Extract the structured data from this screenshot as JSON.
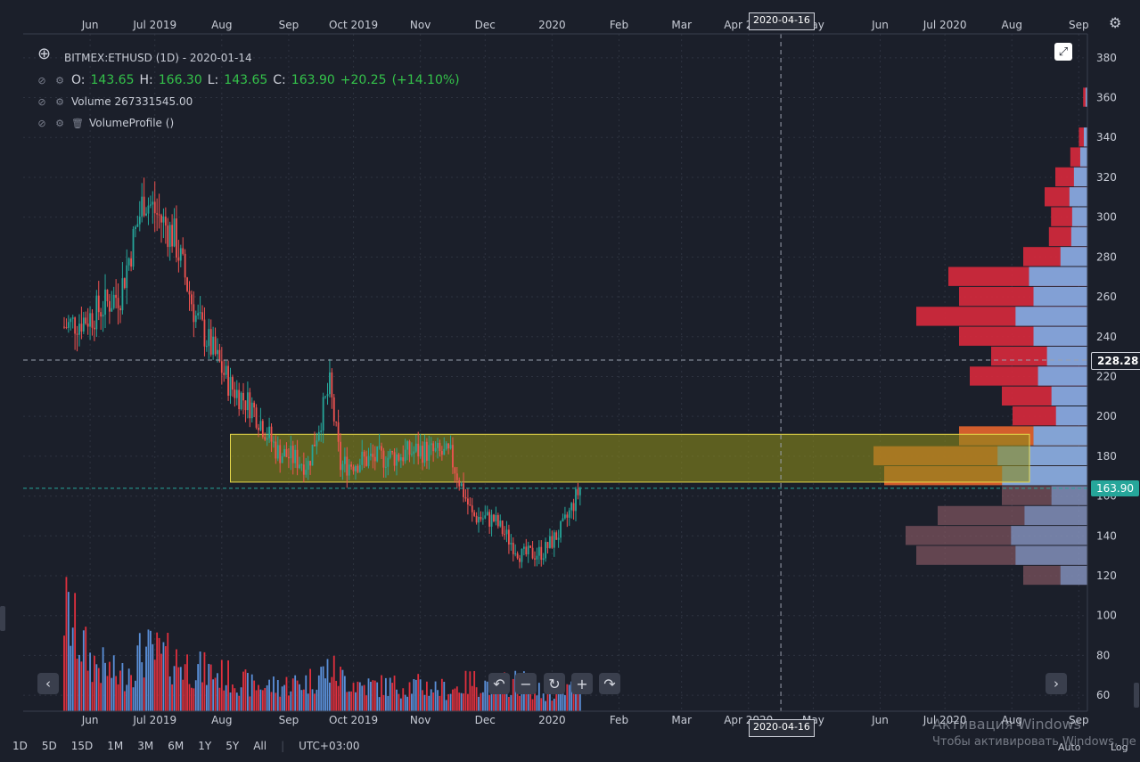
{
  "header": {
    "symbol_line": "BITMEX:ETHUSD (1D) - 2020-01-14",
    "ohlc": {
      "o_label": "O:",
      "o": "143.65",
      "h_label": "H:",
      "h": "166.30",
      "l_label": "L:",
      "l": "143.65",
      "c_label": "C:",
      "c": "163.90",
      "chg": "+20.25",
      "chg_pct": "(+14.10%)"
    },
    "volume_line": "Volume  267331545.00",
    "profile_line": "VolumeProfile ()"
  },
  "crosshair": {
    "date_label": "2020-04-16",
    "price_label": "228.28"
  },
  "last_price_label": "163.90",
  "bottom_toolbar": {
    "ranges": [
      "1D",
      "5D",
      "15D",
      "1M",
      "3M",
      "6M",
      "1Y",
      "5Y",
      "All"
    ],
    "timezone": "UTC+03:00",
    "auto": "Auto",
    "log": "Log"
  },
  "watermark": {
    "line1": "Активация Windows",
    "line2": "Чтобы активировать Windows, пе"
  },
  "icons": {
    "settings": "gear-icon",
    "fullscreen": "expand-icon",
    "magnifier": "zoom-in-icon",
    "eye": "eye-off-icon",
    "cog": "cog-icon",
    "trash": "trash-icon"
  },
  "colors": {
    "up": "#26a69a",
    "down": "#ef5350",
    "vol_up": "#5a8fd8",
    "vol_down": "#e0303e",
    "zone": "#8a8a1a",
    "background": "#1b1f2a"
  },
  "chart_data": {
    "type": "candlestick",
    "x_tick_labels": [
      "Jun",
      "Jul 2019",
      "Aug",
      "Sep",
      "Oct 2019",
      "Nov",
      "Dec",
      "2020",
      "Feb",
      "Mar",
      "Apr 2020",
      "May",
      "Jun",
      "Jul 2020",
      "Aug",
      "Sep"
    ],
    "y_ticks": [
      60,
      80,
      100,
      120,
      140,
      160,
      180,
      200,
      220,
      240,
      260,
      280,
      300,
      320,
      340,
      360,
      380
    ],
    "ylim": [
      52,
      392
    ],
    "series": [
      {
        "name": "",
        "type": "candlestick",
        "x": [
          "2019-05-20",
          "2019-06-01",
          "2019-06-15",
          "2019-06-26",
          "2019-07-10",
          "2019-07-20",
          "2019-08-05",
          "2019-08-15",
          "2019-08-27",
          "2019-09-10",
          "2019-09-20",
          "2019-09-25",
          "2019-10-05",
          "2019-10-20",
          "2019-11-01",
          "2019-11-15",
          "2019-11-25",
          "2019-12-05",
          "2019-12-18",
          "2019-12-28",
          "2020-01-06",
          "2020-01-14"
        ],
        "close": [
          245,
          250,
          262,
          310,
          290,
          250,
          215,
          205,
          182,
          176,
          215,
          175,
          178,
          180,
          183,
          180,
          150,
          148,
          130,
          132,
          144,
          164
        ]
      },
      {
        "name": "",
        "type": "volume",
        "x": [
          "2019-05-20",
          "2019-06-01",
          "2019-06-15",
          "2019-06-26",
          "2019-07-10",
          "2019-07-20",
          "2019-08-05",
          "2019-08-15",
          "2019-08-27",
          "2019-09-10",
          "2019-09-20",
          "2019-09-25",
          "2019-10-05",
          "2019-10-20",
          "2019-11-01",
          "2019-11-15",
          "2019-11-25",
          "2019-12-05",
          "2019-12-18",
          "2019-12-28",
          "2020-01-06",
          "2020-01-14"
        ],
        "values": [
          1.2,
          0.6,
          0.4,
          0.7,
          0.6,
          0.5,
          0.4,
          0.3,
          0.3,
          0.35,
          0.5,
          0.4,
          0.3,
          0.3,
          0.3,
          0.25,
          0.35,
          0.3,
          0.35,
          0.2,
          0.25,
          0.3
        ]
      },
      {
        "name": "",
        "type": "volume_profile",
        "price_levels": [
          120,
          130,
          140,
          150,
          160,
          170,
          180,
          190,
          200,
          210,
          220,
          230,
          240,
          250,
          260,
          270,
          280,
          290,
          300,
          310,
          320,
          330,
          340,
          360
        ],
        "values": [
          0.3,
          0.8,
          0.85,
          0.7,
          0.4,
          0.95,
          1.0,
          0.6,
          0.35,
          0.4,
          0.55,
          0.45,
          0.6,
          0.8,
          0.6,
          0.65,
          0.3,
          0.18,
          0.17,
          0.2,
          0.15,
          0.08,
          0.04,
          0.02
        ]
      }
    ],
    "annotations": [
      {
        "type": "rectangle",
        "y_from": 167,
        "y_to": 191,
        "x_from": "2019-08-05"
      },
      {
        "type": "hline",
        "y": 163.9
      },
      {
        "type": "crosshair",
        "x": "2020-04-16",
        "y": 228.28
      }
    ],
    "grid": true
  }
}
